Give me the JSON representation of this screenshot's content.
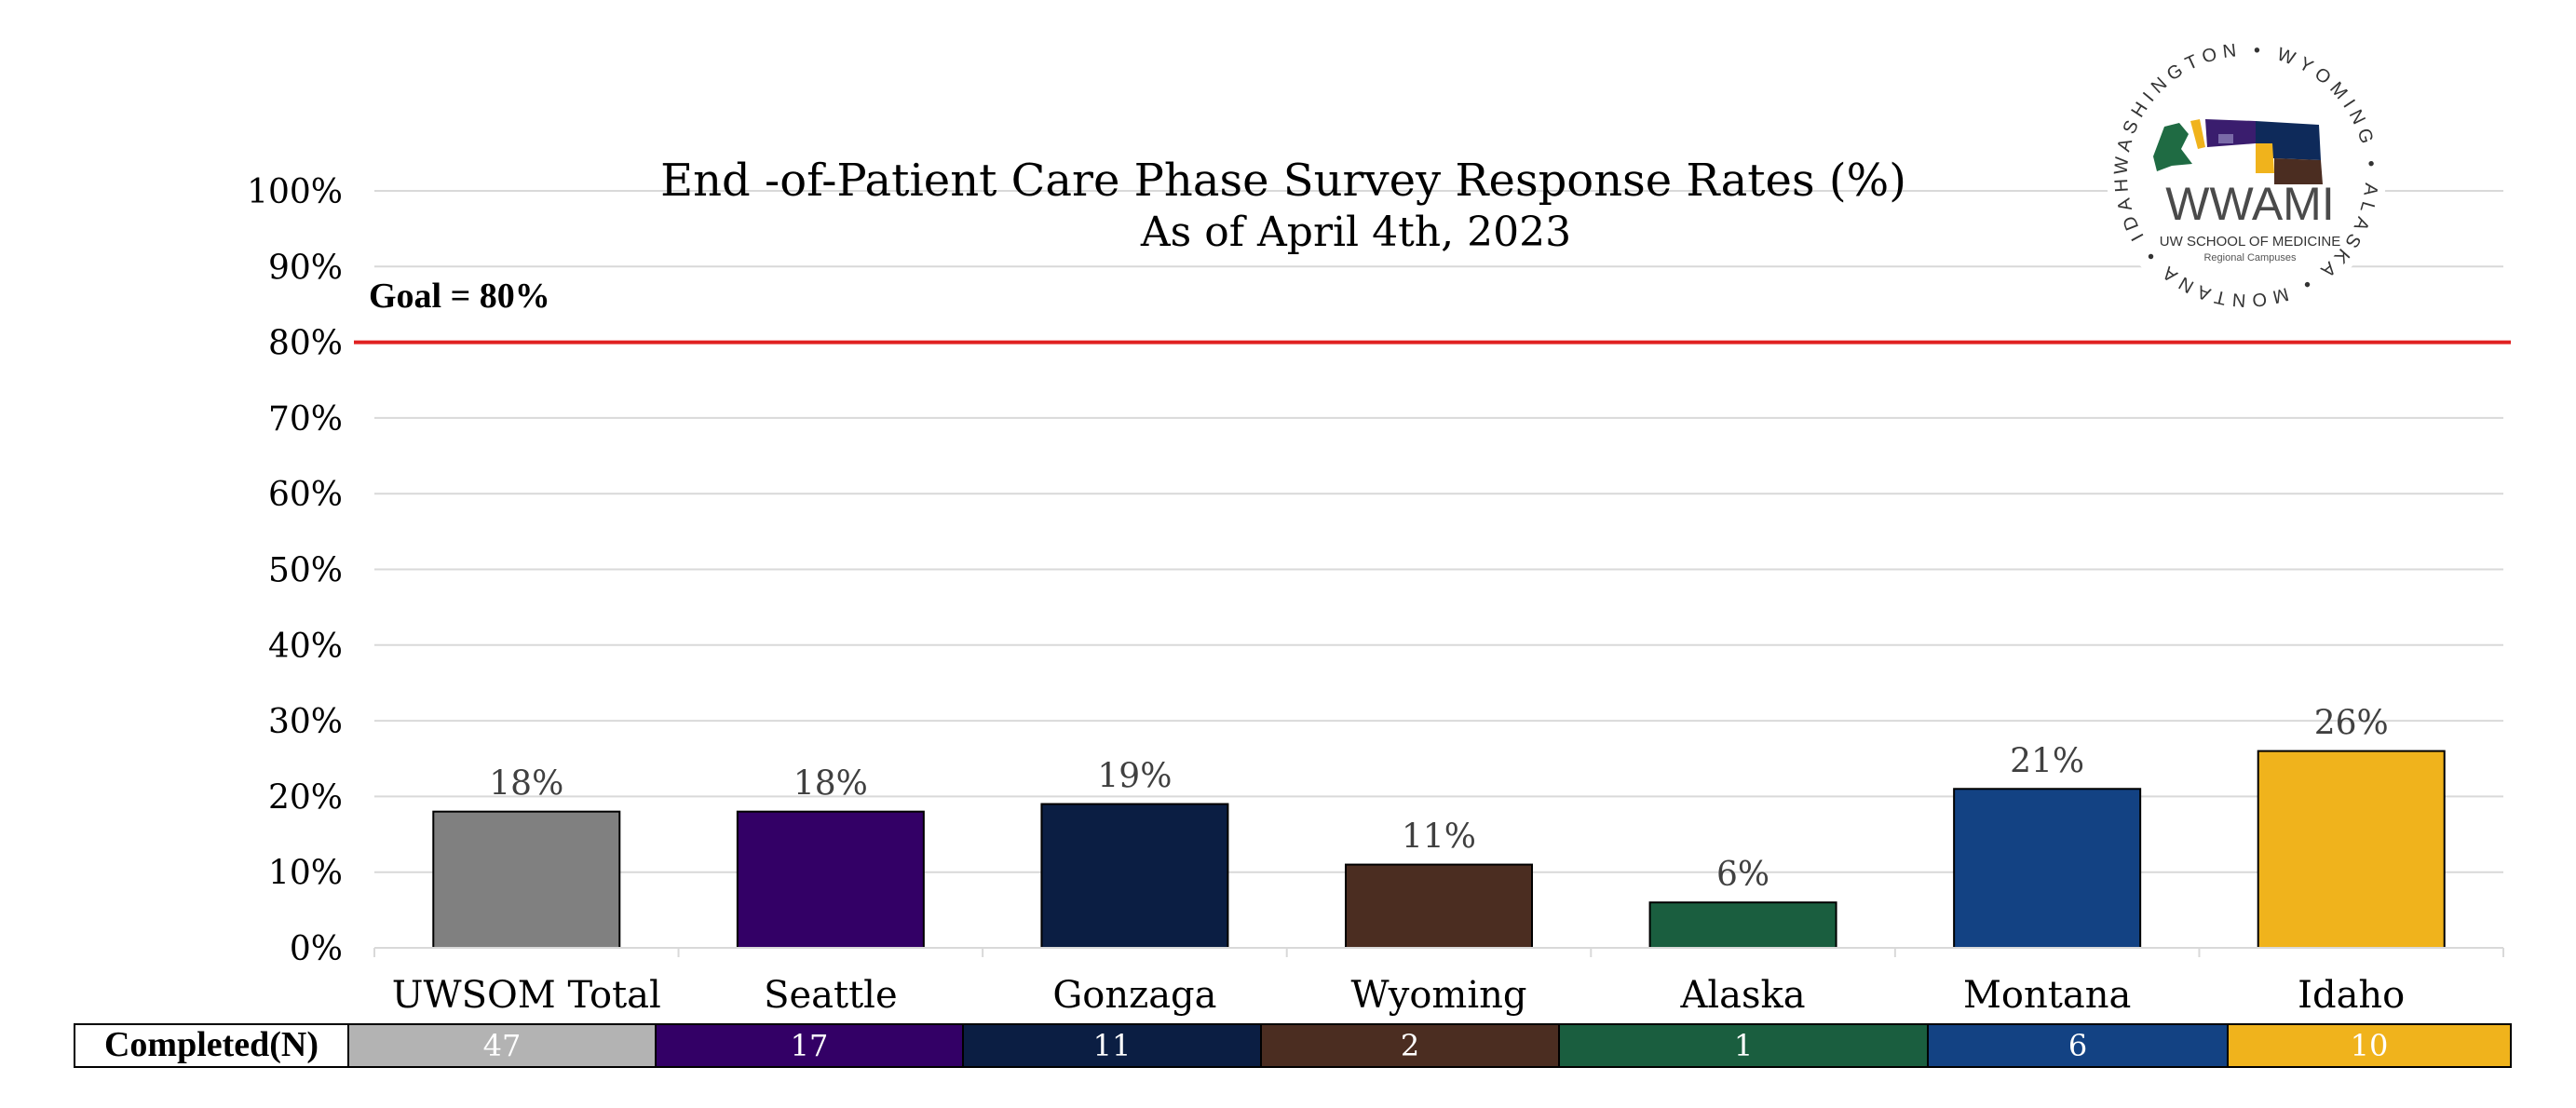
{
  "chart_data": {
    "type": "bar",
    "title": "End -of-Patient Care Phase Survey Response Rates (%)",
    "subtitle": "As of April 4th, 2023",
    "categories": [
      "UWSOM Total",
      "Seattle",
      "Gonzaga",
      "Wyoming",
      "Alaska",
      "Montana",
      "Idaho"
    ],
    "values": [
      18,
      18,
      19,
      11,
      6,
      21,
      26
    ],
    "data_labels": [
      "18%",
      "18%",
      "19%",
      "11%",
      "6%",
      "21%",
      "26%"
    ],
    "bar_colors": [
      "#808080",
      "#330066",
      "#0b1e43",
      "#4b2d21",
      "#1a5e3f",
      "#134283",
      "#f0b31c"
    ],
    "ylim": [
      0,
      100
    ],
    "yticks": [
      "0%",
      "10%",
      "20%",
      "30%",
      "40%",
      "50%",
      "60%",
      "70%",
      "80%",
      "90%",
      "100%"
    ],
    "grid": true,
    "goal": {
      "value": 80,
      "label": "Goal = 80%",
      "color": "#e02020"
    },
    "table": {
      "row_label": "Completed(N)",
      "values": [
        "47",
        "17",
        "11",
        "2",
        "1",
        "6",
        "10"
      ],
      "colors": [
        "#b3b3b3",
        "#330066",
        "#0b1e43",
        "#4b2d21",
        "#1a5e3f",
        "#134283",
        "#f0b31c"
      ]
    }
  },
  "logo": {
    "name": "WWAMI",
    "line1": "UW SCHOOL OF MEDICINE",
    "line2": "Regional Campuses",
    "ring_text": "WASHINGTON • WYOMING • ALASKA • MONTANA • IDAHO •"
  }
}
